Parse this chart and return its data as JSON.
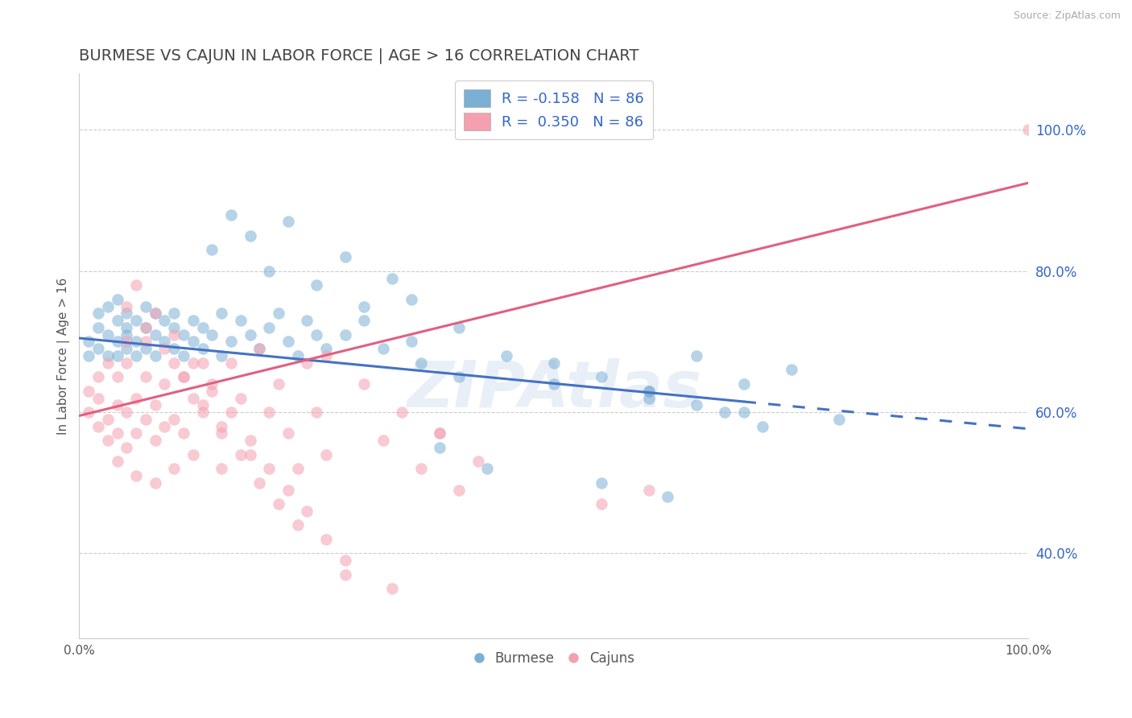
{
  "title": "BURMESE VS CAJUN IN LABOR FORCE | AGE > 16 CORRELATION CHART",
  "source_text": "Source: ZipAtlas.com",
  "ylabel": "In Labor Force | Age > 16",
  "watermark": "ZIPAtlas",
  "xlim": [
    0.0,
    1.0
  ],
  "ylim": [
    0.28,
    1.08
  ],
  "yticks": [
    0.4,
    0.6,
    0.8,
    1.0
  ],
  "ytick_labels": [
    "40.0%",
    "60.0%",
    "80.0%",
    "100.0%"
  ],
  "xticks": [
    0.0,
    1.0
  ],
  "xtick_labels": [
    "0.0%",
    "100.0%"
  ],
  "blue_color": "#7BAFD4",
  "pink_color": "#F4A0B0",
  "blue_line_color": "#4472C4",
  "pink_line_color": "#E06080",
  "grid_color": "#CCCCCC",
  "background_color": "#FFFFFF",
  "legend_blue_label": "R = -0.158   N = 86",
  "legend_pink_label": "R =  0.350   N = 86",
  "title_color": "#444444",
  "title_fontsize": 14,
  "axis_label_color": "#555555",
  "tick_color": "#555555",
  "ytick_color": "#3366CC",
  "source_color": "#AAAAAA",
  "blue_scatter_x": [
    0.01,
    0.01,
    0.02,
    0.02,
    0.02,
    0.03,
    0.03,
    0.03,
    0.04,
    0.04,
    0.04,
    0.04,
    0.05,
    0.05,
    0.05,
    0.05,
    0.06,
    0.06,
    0.06,
    0.07,
    0.07,
    0.07,
    0.08,
    0.08,
    0.08,
    0.09,
    0.09,
    0.1,
    0.1,
    0.1,
    0.11,
    0.11,
    0.12,
    0.12,
    0.13,
    0.13,
    0.14,
    0.15,
    0.15,
    0.16,
    0.17,
    0.18,
    0.19,
    0.2,
    0.21,
    0.22,
    0.23,
    0.24,
    0.25,
    0.26,
    0.14,
    0.16,
    0.18,
    0.2,
    0.22,
    0.25,
    0.28,
    0.3,
    0.33,
    0.35,
    0.4,
    0.45,
    0.5,
    0.55,
    0.6,
    0.65,
    0.7,
    0.75,
    0.28,
    0.32,
    0.36,
    0.4,
    0.5,
    0.6,
    0.7,
    0.8,
    0.3,
    0.35,
    0.38,
    0.43,
    0.55,
    0.62,
    0.68,
    0.72,
    0.65,
    0.6
  ],
  "blue_scatter_y": [
    0.7,
    0.68,
    0.72,
    0.69,
    0.74,
    0.71,
    0.68,
    0.75,
    0.7,
    0.73,
    0.68,
    0.76,
    0.72,
    0.69,
    0.74,
    0.71,
    0.7,
    0.73,
    0.68,
    0.72,
    0.69,
    0.75,
    0.71,
    0.74,
    0.68,
    0.7,
    0.73,
    0.72,
    0.69,
    0.74,
    0.71,
    0.68,
    0.73,
    0.7,
    0.72,
    0.69,
    0.71,
    0.74,
    0.68,
    0.7,
    0.73,
    0.71,
    0.69,
    0.72,
    0.74,
    0.7,
    0.68,
    0.73,
    0.71,
    0.69,
    0.83,
    0.88,
    0.85,
    0.8,
    0.87,
    0.78,
    0.82,
    0.75,
    0.79,
    0.76,
    0.72,
    0.68,
    0.67,
    0.65,
    0.63,
    0.68,
    0.64,
    0.66,
    0.71,
    0.69,
    0.67,
    0.65,
    0.64,
    0.62,
    0.6,
    0.59,
    0.73,
    0.7,
    0.55,
    0.52,
    0.5,
    0.48,
    0.6,
    0.58,
    0.61,
    0.63
  ],
  "pink_scatter_x": [
    0.01,
    0.01,
    0.02,
    0.02,
    0.02,
    0.03,
    0.03,
    0.03,
    0.04,
    0.04,
    0.04,
    0.04,
    0.05,
    0.05,
    0.05,
    0.05,
    0.06,
    0.06,
    0.06,
    0.07,
    0.07,
    0.07,
    0.08,
    0.08,
    0.08,
    0.09,
    0.09,
    0.1,
    0.1,
    0.1,
    0.11,
    0.11,
    0.12,
    0.12,
    0.13,
    0.13,
    0.14,
    0.15,
    0.15,
    0.16,
    0.17,
    0.18,
    0.19,
    0.2,
    0.21,
    0.22,
    0.23,
    0.24,
    0.25,
    0.26,
    0.05,
    0.07,
    0.09,
    0.11,
    0.13,
    0.15,
    0.17,
    0.19,
    0.21,
    0.23,
    0.06,
    0.08,
    0.1,
    0.12,
    0.14,
    0.16,
    0.18,
    0.2,
    0.22,
    0.24,
    0.26,
    0.28,
    0.32,
    0.36,
    0.4,
    0.26,
    0.3,
    0.34,
    0.38,
    0.42,
    0.28,
    0.33,
    0.6,
    0.38,
    0.55,
    1.0
  ],
  "pink_scatter_y": [
    0.63,
    0.6,
    0.65,
    0.58,
    0.62,
    0.67,
    0.59,
    0.56,
    0.61,
    0.65,
    0.57,
    0.53,
    0.6,
    0.67,
    0.55,
    0.7,
    0.62,
    0.57,
    0.51,
    0.65,
    0.59,
    0.7,
    0.61,
    0.56,
    0.5,
    0.64,
    0.58,
    0.67,
    0.59,
    0.52,
    0.65,
    0.57,
    0.62,
    0.54,
    0.67,
    0.6,
    0.64,
    0.57,
    0.52,
    0.67,
    0.62,
    0.54,
    0.69,
    0.6,
    0.64,
    0.57,
    0.52,
    0.67,
    0.6,
    0.54,
    0.75,
    0.72,
    0.69,
    0.65,
    0.61,
    0.58,
    0.54,
    0.5,
    0.47,
    0.44,
    0.78,
    0.74,
    0.71,
    0.67,
    0.63,
    0.6,
    0.56,
    0.52,
    0.49,
    0.46,
    0.42,
    0.39,
    0.56,
    0.52,
    0.49,
    0.68,
    0.64,
    0.6,
    0.57,
    0.53,
    0.37,
    0.35,
    0.49,
    0.57,
    0.47,
    1.0
  ]
}
